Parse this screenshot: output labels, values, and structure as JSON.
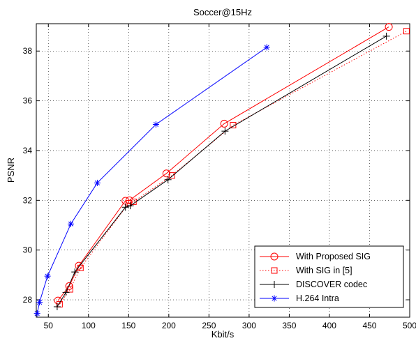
{
  "chart_data": {
    "type": "line",
    "title": "Soccer@15Hz",
    "xlabel": "Kbit/s",
    "ylabel": "PSNR",
    "xlim": [
      35,
      500
    ],
    "ylim": [
      27.3,
      39.1
    ],
    "xticks": [
      50,
      100,
      150,
      200,
      250,
      300,
      350,
      400,
      450,
      500
    ],
    "yticks": [
      28,
      30,
      32,
      34,
      36,
      38
    ],
    "grid": true,
    "legend_position": "bottom-right",
    "series": [
      {
        "name": "With Proposed SIG",
        "color": "#ff0000",
        "line": "solid",
        "marker": "circle",
        "points": [
          [
            62,
            27.97
          ],
          [
            76,
            28.55
          ],
          [
            88,
            29.37
          ],
          [
            146,
            31.98
          ],
          [
            151,
            32.0
          ],
          [
            197,
            33.08
          ],
          [
            269,
            35.08
          ],
          [
            474,
            38.97
          ]
        ]
      },
      {
        "name": "With SIG in [5]",
        "color": "#ff0000",
        "line": "dotted",
        "marker": "square",
        "points": [
          [
            64,
            27.82
          ],
          [
            77,
            28.42
          ],
          [
            90,
            29.28
          ],
          [
            150,
            31.88
          ],
          [
            156,
            31.94
          ],
          [
            204,
            33.0
          ],
          [
            280,
            35.02
          ],
          [
            496,
            38.8
          ]
        ]
      },
      {
        "name": "DISCOVER codec",
        "color": "#000000",
        "line": "solid",
        "marker": "plus",
        "points": [
          [
            61,
            27.72
          ],
          [
            72,
            28.3
          ],
          [
            83,
            29.12
          ],
          [
            146,
            31.72
          ],
          [
            152,
            31.78
          ],
          [
            199,
            32.83
          ],
          [
            270,
            34.78
          ],
          [
            471,
            38.6
          ]
        ]
      },
      {
        "name": "H.264 Intra",
        "color": "#0000ff",
        "line": "solid",
        "marker": "star",
        "points": [
          [
            36,
            27.45
          ],
          [
            39,
            27.9
          ],
          [
            49,
            28.95
          ],
          [
            78,
            31.05
          ],
          [
            111,
            32.7
          ],
          [
            184,
            35.05
          ],
          [
            322,
            38.15
          ]
        ]
      }
    ]
  }
}
